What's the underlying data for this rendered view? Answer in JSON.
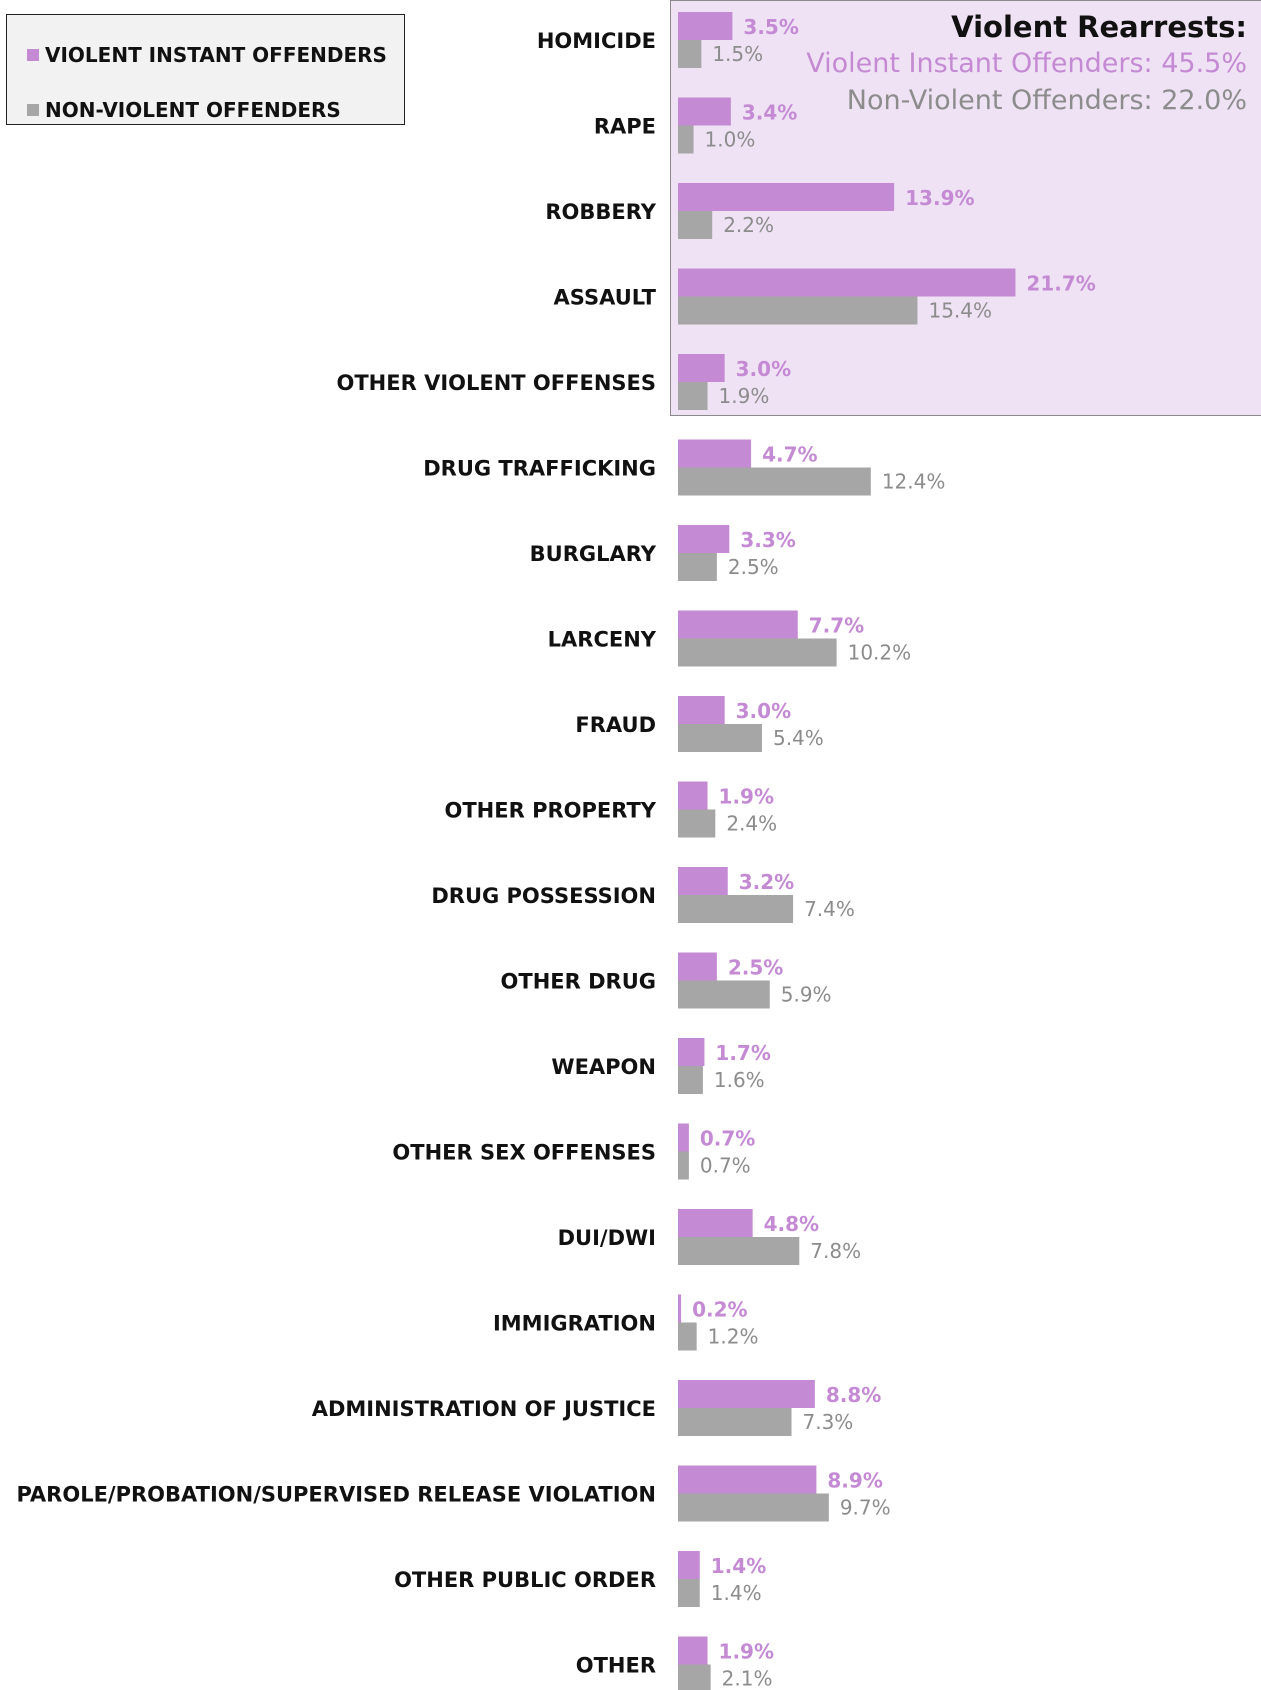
{
  "legend": {
    "violent_label": "VIOLENT INSTANT OFFENDERS",
    "nonviolent_label": "NON-VIOLENT OFFENDERS"
  },
  "callout": {
    "title": "Violent Rearrests:",
    "violent_line": "Violent Instant Offenders: 45.5%",
    "nonviolent_line": "Non-Violent Offenders: 22.0%",
    "background_color": "#efe2f4"
  },
  "colors": {
    "violent": "#c58ad4",
    "nonviolent": "#a6a6a6",
    "violent_text": "#c58ad4",
    "nonviolent_text": "#8c8c8c"
  },
  "chart_data": {
    "type": "bar",
    "orientation": "horizontal",
    "categories": [
      "HOMICIDE",
      "RAPE",
      "ROBBERY",
      "ASSAULT",
      "OTHER VIOLENT OFFENSES",
      "DRUG TRAFFICKING",
      "BURGLARY",
      "LARCENY",
      "FRAUD",
      "OTHER PROPERTY",
      "DRUG POSSESSION",
      "OTHER DRUG",
      "WEAPON",
      "OTHER SEX OFFENSES",
      "DUI/DWI",
      "IMMIGRATION",
      "ADMINISTRATION OF JUSTICE",
      "PAROLE/PROBATION/SUPERVISED RELEASE VIOLATION",
      "OTHER PUBLIC ORDER",
      "OTHER"
    ],
    "series": [
      {
        "name": "VIOLENT INSTANT OFFENDERS",
        "values": [
          3.5,
          3.4,
          13.9,
          21.7,
          3.0,
          4.7,
          3.3,
          7.7,
          3.0,
          1.9,
          3.2,
          2.5,
          1.7,
          0.7,
          4.8,
          0.2,
          8.8,
          8.9,
          1.4,
          1.9
        ],
        "labels": [
          "3.5%",
          "3.4%",
          "13.9%",
          "21.7%",
          "3.0%",
          "4.7%",
          "3.3%",
          "7.7%",
          "3.0%",
          "1.9%",
          "3.2%",
          "2.5%",
          "1.7%",
          "0.7%",
          "4.8%",
          "0.2%",
          "8.8%",
          "8.9%",
          "1.4%",
          "1.9%"
        ]
      },
      {
        "name": "NON-VIOLENT OFFENDERS",
        "values": [
          1.5,
          1.0,
          2.2,
          15.4,
          1.9,
          12.4,
          2.5,
          10.2,
          5.4,
          2.4,
          7.4,
          5.9,
          1.6,
          0.7,
          7.8,
          1.2,
          7.3,
          9.7,
          1.4,
          2.1
        ],
        "labels": [
          "1.5%",
          "1.0%",
          "2.2%",
          "15.4%",
          "1.9%",
          "12.4%",
          "2.5%",
          "10.2%",
          "5.4%",
          "2.4%",
          "7.4%",
          "5.9%",
          "1.6%",
          "0.7%",
          "7.8%",
          "1.2%",
          "7.3%",
          "9.7%",
          "1.4%",
          "2.1%"
        ]
      }
    ],
    "xlim": [
      0,
      35
    ],
    "grid": false,
    "legend_position": "top-left",
    "highlighted_categories": [
      "HOMICIDE",
      "RAPE",
      "ROBBERY",
      "ASSAULT",
      "OTHER VIOLENT OFFENSES"
    ]
  }
}
